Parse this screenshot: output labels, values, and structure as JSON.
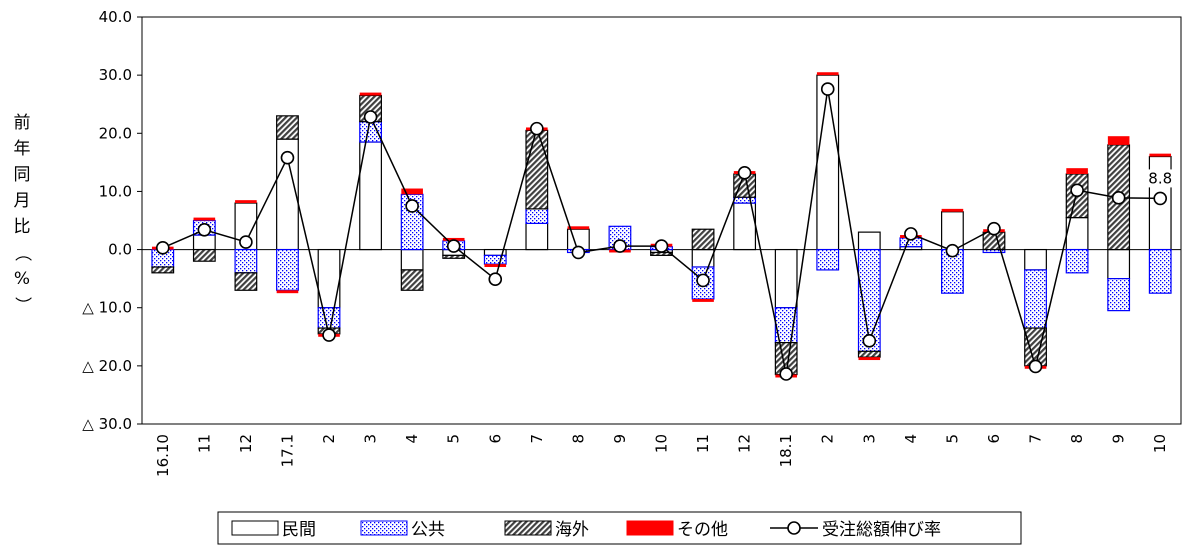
{
  "chart_data": {
    "type": "stacked-bar-line",
    "ylabel_chars": [
      "前",
      "年",
      "同",
      "月",
      "比",
      "（",
      "%",
      "）"
    ],
    "ylim": [
      -30,
      40
    ],
    "y_ticks": [
      {
        "value": 40,
        "label": "40.0"
      },
      {
        "value": 30,
        "label": "30.0"
      },
      {
        "value": 20,
        "label": "20.0"
      },
      {
        "value": 10,
        "label": "10.0"
      },
      {
        "value": 0,
        "label": "0.0"
      },
      {
        "value": -10,
        "label": "△ 10.0"
      },
      {
        "value": -20,
        "label": "△ 20.0"
      },
      {
        "value": -30,
        "label": "△ 30.0"
      }
    ],
    "categories": [
      "16.10",
      "11",
      "12",
      "17.1",
      "2",
      "3",
      "4",
      "5",
      "6",
      "7",
      "8",
      "9",
      "10",
      "11",
      "12",
      "18.1",
      "2",
      "3",
      "4",
      "5",
      "6",
      "7",
      "8",
      "9",
      "10"
    ],
    "series": [
      {
        "name": "民間",
        "key": "private",
        "fill": "#ffffff",
        "pattern": "none",
        "values": [
          0.0,
          2.5,
          8.0,
          19.0,
          -10.0,
          18.5,
          -3.5,
          -1.0,
          -1.0,
          4.5,
          3.5,
          0.0,
          -0.5,
          -3.0,
          8.0,
          -10.0,
          30.0,
          3.0,
          0.5,
          6.5,
          0.0,
          -3.5,
          5.5,
          -5.0,
          16.0
        ]
      },
      {
        "name": "公共",
        "key": "public",
        "fill": "#0000ff",
        "pattern": "dots",
        "values": [
          -3.0,
          2.5,
          -4.0,
          -7.0,
          -3.5,
          3.5,
          9.5,
          1.5,
          -1.5,
          2.5,
          -0.5,
          4.0,
          0.5,
          -5.5,
          1.0,
          -6.0,
          -3.5,
          -17.5,
          1.5,
          -7.5,
          -0.5,
          -10.0,
          -4.0,
          -5.5,
          -7.5
        ]
      },
      {
        "name": "海外",
        "key": "overseas",
        "fill": "#404040",
        "pattern": "hatch",
        "values": [
          -1.0,
          -2.0,
          -3.0,
          4.0,
          -1.0,
          4.5,
          -3.5,
          -0.5,
          0.0,
          13.5,
          0.0,
          0.0,
          -0.5,
          3.5,
          4.0,
          -5.5,
          0.0,
          -1.0,
          0.0,
          0.0,
          3.0,
          -6.5,
          7.5,
          18.0,
          0.0
        ]
      },
      {
        "name": "その他",
        "key": "other",
        "fill": "#ff0000",
        "pattern": "solid",
        "values": [
          0.5,
          0.5,
          0.5,
          -0.5,
          -0.5,
          0.5,
          1.0,
          0.5,
          -0.5,
          0.5,
          0.5,
          -0.5,
          0.5,
          -0.5,
          0.5,
          -0.5,
          0.5,
          -0.5,
          0.5,
          0.5,
          0.5,
          -0.5,
          1.0,
          1.5,
          0.5
        ]
      }
    ],
    "line": {
      "name": "受注総額伸び率",
      "values": [
        0.3,
        3.4,
        1.3,
        15.8,
        -14.7,
        22.8,
        7.5,
        0.6,
        -5.1,
        20.8,
        -0.5,
        0.6,
        0.6,
        -5.3,
        13.2,
        -21.4,
        27.6,
        -15.7,
        2.7,
        -0.2,
        3.6,
        -20.1,
        10.2,
        8.9,
        8.8
      ]
    },
    "annotations": [
      {
        "category_index": 24,
        "text": "8.8"
      }
    ],
    "legend": [
      "民間",
      "公共",
      "海外",
      "その他",
      "受注総額伸び率"
    ],
    "legend_position": "bottom",
    "grid": false
  }
}
